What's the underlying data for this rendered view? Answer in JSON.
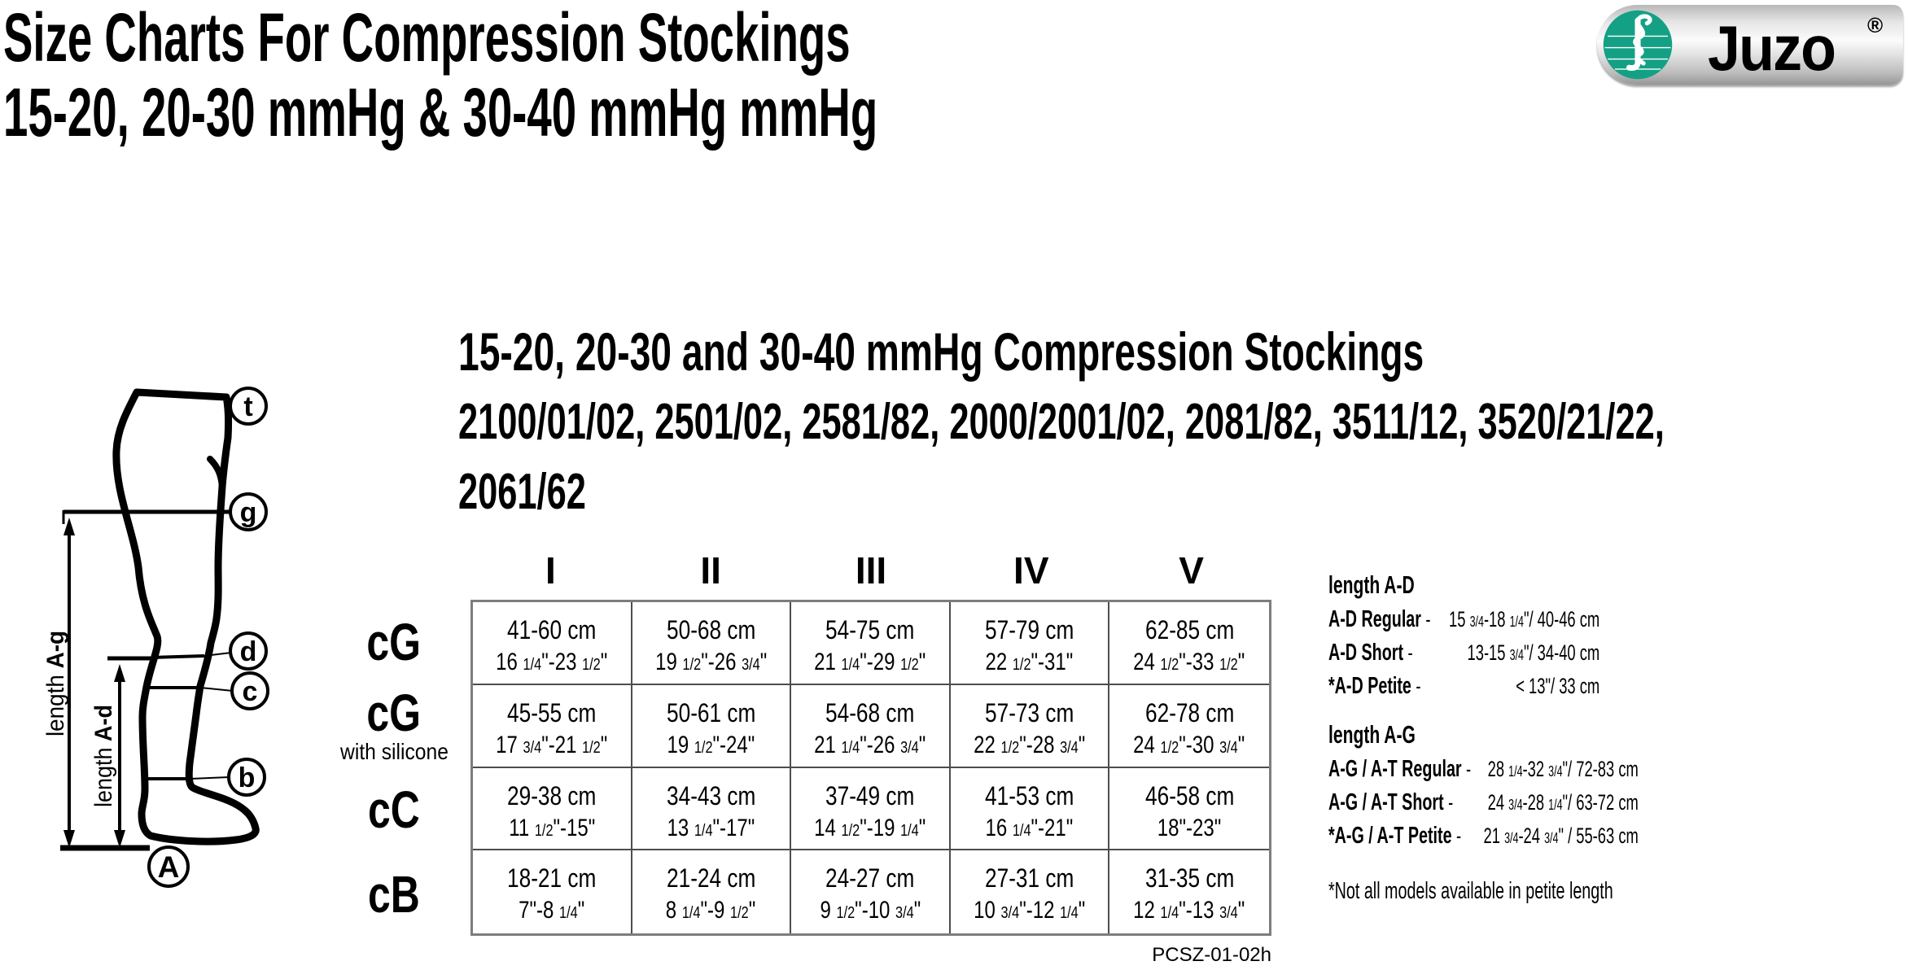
{
  "page": {
    "title_line1": "Size Charts For Compression Stockings",
    "title_line2": "15-20, 20-30 mmHg & 30-40 mmHg mmHg",
    "doc_code": "PCSZ-01-02h"
  },
  "logo": {
    "brand": "Juzo",
    "registered": "®",
    "green": "#14a084"
  },
  "diagram": {
    "points": {
      "t": "t",
      "g": "g",
      "d": "d",
      "c": "c",
      "b": "b",
      "A": "A"
    },
    "length_ag": {
      "word": "length ",
      "ref": "A-g"
    },
    "length_ad": {
      "word": "length ",
      "ref": "A-d"
    }
  },
  "section": {
    "heading": "15-20, 20-30 and 30-40 mmHg Compression Stockings",
    "models_line1": "2100/01/02, 2501/02, 2581/82, 2000/2001/02, 2081/82, 3511/12, 3520/21/22,",
    "models_line2": "2061/62"
  },
  "size_table": {
    "columns": [
      "I",
      "II",
      "III",
      "IV",
      "V"
    ],
    "rows": [
      {
        "label": "cG",
        "sublabel": "",
        "cells": [
          {
            "cm": "41-60 cm",
            "inch": "16 1/4\"-23 1/2\""
          },
          {
            "cm": "50-68 cm",
            "inch": "19 1/2\"-26 3/4\""
          },
          {
            "cm": "54-75 cm",
            "inch": "21 1/4\"-29 1/2\""
          },
          {
            "cm": "57-79 cm",
            "inch": "22 1/2\"-31\""
          },
          {
            "cm": "62-85 cm",
            "inch": "24 1/2\"-33 1/2\""
          }
        ]
      },
      {
        "label": "cG",
        "sublabel": "with silicone",
        "cells": [
          {
            "cm": "45-55 cm",
            "inch": "17 3/4\"-21 1/2\""
          },
          {
            "cm": "50-61 cm",
            "inch": "19 1/2\"-24\""
          },
          {
            "cm": "54-68 cm",
            "inch": "21 1/4\"-26 3/4\""
          },
          {
            "cm": "57-73 cm",
            "inch": "22 1/2\"-28 3/4\""
          },
          {
            "cm": "62-78 cm",
            "inch": "24 1/2\"-30 3/4\""
          }
        ]
      },
      {
        "label": "cC",
        "sublabel": "",
        "cells": [
          {
            "cm": "29-38 cm",
            "inch": "11 1/2\"-15\""
          },
          {
            "cm": "34-43 cm",
            "inch": "13 1/4\"-17\""
          },
          {
            "cm": "37-49 cm",
            "inch": "14 1/2\"-19 1/4\""
          },
          {
            "cm": "41-53 cm",
            "inch": "16 1/4\"-21\""
          },
          {
            "cm": "46-58 cm",
            "inch": "18\"-23\""
          }
        ]
      },
      {
        "label": "cB",
        "sublabel": "",
        "cells": [
          {
            "cm": "18-21 cm",
            "inch": "7\"-8 1/4\""
          },
          {
            "cm": "21-24 cm",
            "inch": "8 1/4\"-9 1/2\""
          },
          {
            "cm": "24-27 cm",
            "inch": "9 1/2\"-10 3/4\""
          },
          {
            "cm": "27-31 cm",
            "inch": "10 3/4\"-12 1/4\""
          },
          {
            "cm": "31-35 cm",
            "inch": "12 1/4\"-13 3/4\""
          }
        ]
      }
    ]
  },
  "length_info": {
    "dash": "-",
    "ad": {
      "heading": "length A-D",
      "rows": [
        {
          "label": "A-D Regular",
          "value": "15 3/4-18 1/4\"/ 40-46 cm"
        },
        {
          "label": "A-D Short",
          "value": "13-15 3/4\"/ 34-40 cm"
        },
        {
          "label": "*A-D Petite",
          "value": "< 13\"/ 33 cm"
        }
      ]
    },
    "ag": {
      "heading": "length A-G",
      "rows": [
        {
          "label": "A-G / A-T Regular",
          "value": "28 1/4-32 3/4\"/ 72-83 cm"
        },
        {
          "label": "A-G / A-T Short",
          "value": "24 3/4-28 1/4\"/ 63-72 cm"
        },
        {
          "label": "*A-G / A-T Petite",
          "value": "21 3/4-24 3/4\" / 55-63 cm"
        }
      ]
    },
    "footnote": "*Not all models available in petite length"
  }
}
